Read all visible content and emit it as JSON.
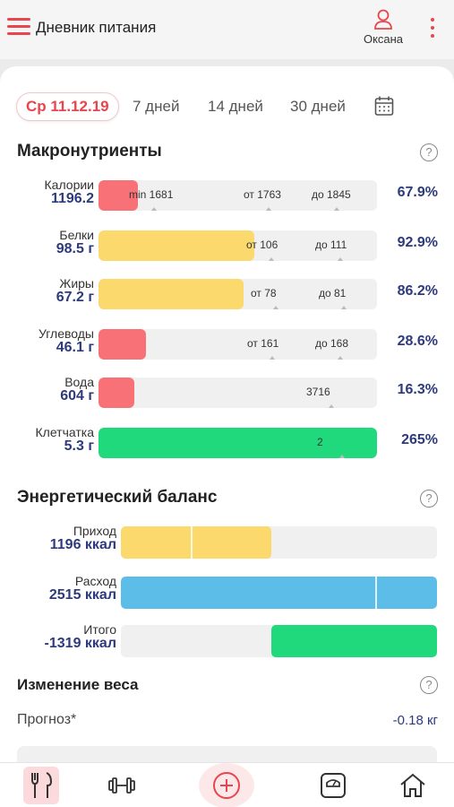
{
  "header": {
    "title": "Дневник питания",
    "user_name": "Оксана"
  },
  "tabs": [
    {
      "label": "Ср 11.12.19",
      "active": true
    },
    {
      "label": "7 дней",
      "active": false
    },
    {
      "label": "14 дней",
      "active": false
    },
    {
      "label": "30 дней",
      "active": false
    }
  ],
  "macros": {
    "title": "Макронутриенты",
    "help": "?",
    "rows": [
      {
        "name": "Калории",
        "value": "1196.2",
        "percent": "67.9%",
        "fill_fraction": 0.14,
        "color": "#f87177",
        "markers": [
          "min 1681",
          "от 1763",
          "до 1845"
        ]
      },
      {
        "name": "Белки",
        "value": "98.5 г",
        "percent": "92.9%",
        "fill_fraction": 0.56,
        "color": "#fbd96d",
        "markers": [
          "от 106",
          "до 111"
        ]
      },
      {
        "name": "Жиры",
        "value": "67.2 г",
        "percent": "86.2%",
        "fill_fraction": 0.52,
        "color": "#fbd96d",
        "markers": [
          "от 78",
          "до 81"
        ]
      },
      {
        "name": "Углеводы",
        "value": "46.1 г",
        "percent": "28.6%",
        "fill_fraction": 0.17,
        "color": "#f87177",
        "markers": [
          "от 161",
          "до 168"
        ]
      },
      {
        "name": "Вода",
        "value": "604 г",
        "percent": "16.3%",
        "fill_fraction": 0.13,
        "color": "#f87177",
        "markers": [
          "3716"
        ]
      },
      {
        "name": "Клетчатка",
        "value": "5.3 г",
        "percent": "265%",
        "fill_fraction": 1.0,
        "color": "#20d97c",
        "markers": [
          "2"
        ]
      }
    ]
  },
  "energy": {
    "title": "Энергетический баланс",
    "help": "?",
    "rows": [
      {
        "name": "Приход",
        "value": "1196 ккал",
        "color": "#fbd96d",
        "fill_fraction": 0.475,
        "offset_fraction": 0
      },
      {
        "name": "Расход",
        "value": "2515 ккал",
        "color": "#5dbde9",
        "fill_fraction": 1.0,
        "offset_fraction": 0
      },
      {
        "name": "Итого",
        "value": "-1319 ккал",
        "color": "#20d97c",
        "fill_fraction": 0.525,
        "offset_fraction": 0.475
      }
    ]
  },
  "weight": {
    "title": "Изменение веса",
    "help": "?",
    "forecast_label": "Прогноз*",
    "forecast_value": "-0.18 кг"
  },
  "colors": {
    "accent": "#e8454c",
    "value_text": "#2d3a7c"
  },
  "nav": [
    "diary-icon",
    "dumbbell-icon",
    "add-icon",
    "scale-icon",
    "home-icon"
  ]
}
